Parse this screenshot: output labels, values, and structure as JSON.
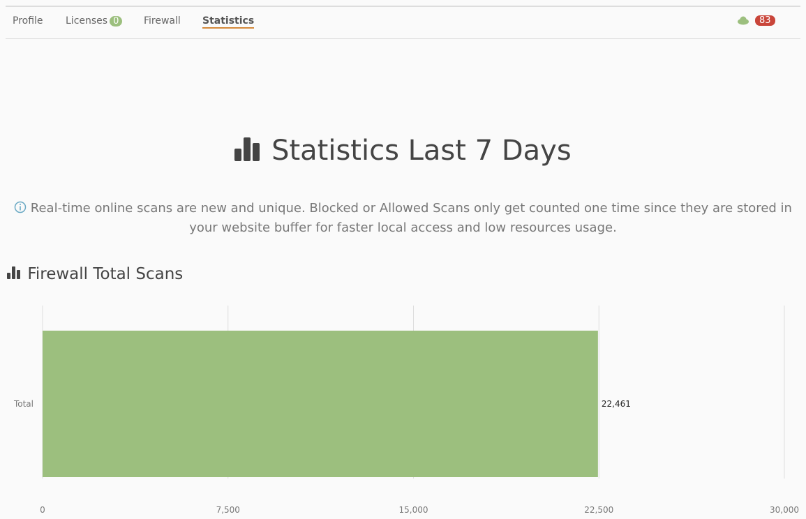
{
  "nav": {
    "tabs": [
      {
        "label": "Profile"
      },
      {
        "label": "Licenses",
        "badge": "0"
      },
      {
        "label": "Firewall"
      },
      {
        "label": "Statistics",
        "active": true
      }
    ],
    "cloud_badge": "83"
  },
  "title": "Statistics Last 7 Days",
  "info": "Real-time online scans are new and unique. Blocked or Allowed Scans only get counted one time since they are stored in your website buffer for faster local access and low resources usage.",
  "section_title": "Firewall Total Scans",
  "chart_data": {
    "type": "bar",
    "orientation": "horizontal",
    "categories": [
      "Total"
    ],
    "values": [
      22461
    ],
    "value_labels": [
      "22,461"
    ],
    "xlim": [
      0,
      30000
    ],
    "ticks": [
      "0",
      "7,500",
      "15,000",
      "22,500",
      "30,000"
    ],
    "tick_values": [
      0,
      7500,
      15000,
      22500,
      30000
    ],
    "grid": true,
    "color": "#9cbf7e"
  },
  "colors": {
    "accent": "#d4893a",
    "green": "#9cbf7e",
    "red": "#c9453a"
  }
}
